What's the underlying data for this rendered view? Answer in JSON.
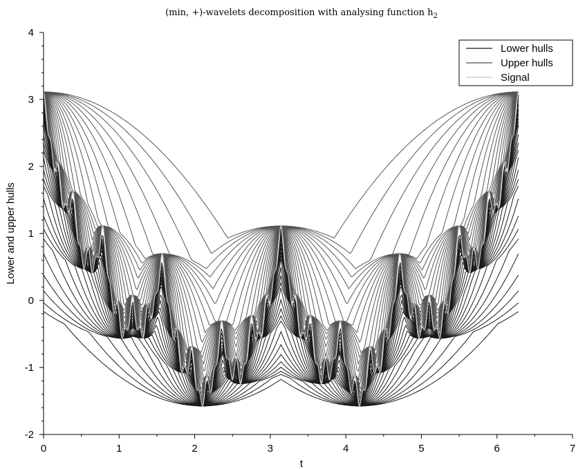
{
  "chart_data": {
    "type": "line",
    "title": "(min, +)-wavelets decomposition with analysing function  h2",
    "title_main": "(min, +)-wavelets decomposition with analysing function  h",
    "title_sub": "2",
    "xlabel": "t",
    "ylabel": "Lower and upper hulls",
    "xlim": [
      0,
      7
    ],
    "ylim": [
      -2,
      4
    ],
    "x_ticks": [
      "0",
      "1",
      "2",
      "3",
      "4",
      "5",
      "6",
      "7"
    ],
    "y_ticks": [
      "-2",
      "-1",
      "0",
      "1",
      "2",
      "3",
      "4"
    ],
    "grid": false,
    "legend_position": "top-right",
    "legend": [
      "Lower hulls",
      "Upper hulls",
      "Signal"
    ],
    "colors": {
      "lower_hulls": "#1a1a1a",
      "upper_hulls": "#555555",
      "signal": "#c8c8c8",
      "axis": "#000000"
    },
    "series": [
      {
        "name": "Signal",
        "sample_points": [
          [
            0,
            3.3
          ],
          [
            0.39,
            0.4
          ],
          [
            0.79,
            1.41
          ],
          [
            1.18,
            -0.6
          ],
          [
            1.57,
            1.0
          ],
          [
            1.96,
            -1.2
          ],
          [
            2.36,
            0.0
          ],
          [
            2.75,
            -1.3
          ],
          [
            3.14,
            1.41
          ],
          [
            3.53,
            -1.3
          ],
          [
            3.93,
            0.0
          ],
          [
            4.32,
            -1.2
          ],
          [
            4.71,
            1.0
          ],
          [
            5.1,
            -0.6
          ],
          [
            5.5,
            1.41
          ],
          [
            5.89,
            0.4
          ],
          [
            6.28,
            3.3
          ]
        ]
      },
      {
        "name": "Upper hulls",
        "envelope_points": [
          [
            0,
            3.41
          ],
          [
            0.79,
            1.41
          ],
          [
            1.57,
            1.0
          ],
          [
            2.36,
            0.0
          ],
          [
            3.14,
            1.41
          ],
          [
            3.93,
            0.0
          ],
          [
            4.71,
            1.0
          ],
          [
            5.5,
            1.41
          ],
          [
            6.28,
            3.41
          ]
        ]
      },
      {
        "name": "Lower hulls",
        "envelope_points": [
          [
            0,
            -0.2
          ],
          [
            1.05,
            -0.68
          ],
          [
            2.09,
            -1.68
          ],
          [
            2.62,
            -1.35
          ],
          [
            3.14,
            -1.18
          ],
          [
            3.67,
            -1.35
          ],
          [
            4.19,
            -1.68
          ],
          [
            5.24,
            -0.68
          ],
          [
            6.28,
            -0.2
          ]
        ]
      }
    ]
  }
}
